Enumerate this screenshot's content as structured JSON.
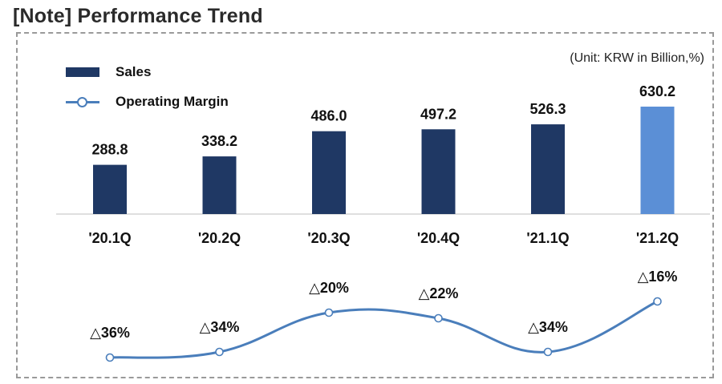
{
  "header": {
    "title": "[Note] Performance Trend"
  },
  "unit_label": "(Unit: KRW in Billion,%)",
  "legend": {
    "sales": "Sales",
    "operating_margin": "Operating Margin"
  },
  "colors": {
    "bar": "#1f3864",
    "bar_highlight": "#5b8fd6",
    "line": "#4a7ebb",
    "axis": "#bfbfbf"
  },
  "chart_data": {
    "type": "bar",
    "title": "[Note] Performance Trend",
    "categories": [
      "'20.1Q",
      "'20.2Q",
      "'20.3Q",
      "'20.4Q",
      "'21.1Q",
      "'21.2Q"
    ],
    "series": [
      {
        "name": "Sales",
        "type": "bar",
        "values": [
          288.8,
          338.2,
          486.0,
          497.2,
          526.3,
          630.2
        ],
        "labels": [
          "288.8",
          "338.2",
          "486.0",
          "497.2",
          "526.3",
          "630.2"
        ]
      },
      {
        "name": "Operating Margin",
        "type": "line",
        "values": [
          -36,
          -34,
          -20,
          -22,
          -34,
          -16
        ],
        "labels": [
          "△36%",
          "△34%",
          "△20%",
          "△22%",
          "△34%",
          "△16%"
        ]
      }
    ],
    "highlight_index": 5,
    "legend_position": "top-left",
    "grid": false
  }
}
